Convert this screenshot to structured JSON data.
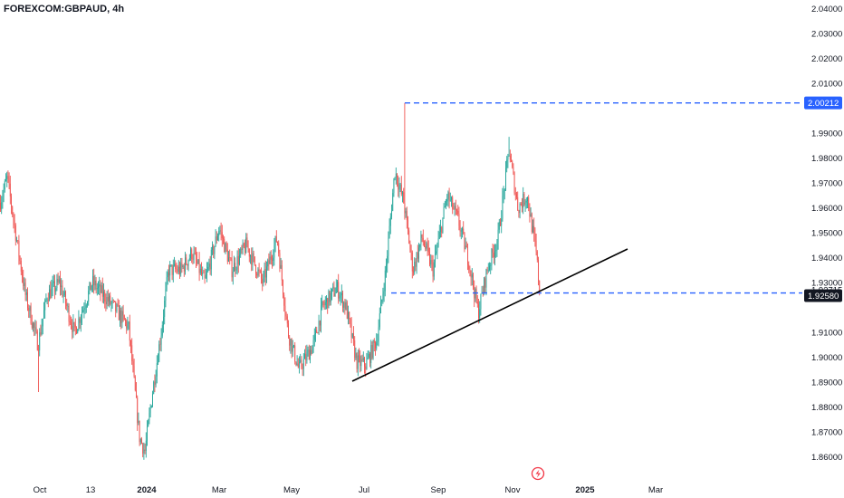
{
  "header": {
    "symbol": "FOREXCOM:GBPAUD",
    "interval": "4h"
  },
  "chart_data": {
    "type": "candlestick",
    "title": "FOREXCOM:GBPAUD, 4h",
    "ylim": [
      1.855,
      2.042
    ],
    "y_ticks": [
      "2.04000",
      "2.03000",
      "2.02000",
      "2.01000",
      "1.99000",
      "1.98000",
      "1.97000",
      "1.96000",
      "1.95000",
      "1.94000",
      "1.93000",
      "1.91000",
      "1.90000",
      "1.89000",
      "1.88000",
      "1.87000",
      "1.86000"
    ],
    "x_ticks": [
      {
        "label": "Oct",
        "bold": false
      },
      {
        "label": "13",
        "bold": false
      },
      {
        "label": "2024",
        "bold": true
      },
      {
        "label": "Mar",
        "bold": false
      },
      {
        "label": "May",
        "bold": false
      },
      {
        "label": "Jul",
        "bold": false
      },
      {
        "label": "Sep",
        "bold": false
      },
      {
        "label": "Nov",
        "bold": false
      },
      {
        "label": "2025",
        "bold": true
      },
      {
        "label": "Mar",
        "bold": false
      }
    ],
    "price_path": [
      [
        0,
        1.962
      ],
      [
        8,
        1.972
      ],
      [
        18,
        1.948
      ],
      [
        28,
        1.925
      ],
      [
        42,
        1.905
      ],
      [
        52,
        1.925
      ],
      [
        66,
        1.93
      ],
      [
        82,
        1.91
      ],
      [
        102,
        1.93
      ],
      [
        126,
        1.92
      ],
      [
        142,
        1.912
      ],
      [
        154,
        1.868
      ],
      [
        160,
        1.862
      ],
      [
        168,
        1.885
      ],
      [
        178,
        1.91
      ],
      [
        186,
        1.935
      ],
      [
        200,
        1.935
      ],
      [
        212,
        1.942
      ],
      [
        226,
        1.93
      ],
      [
        242,
        1.952
      ],
      [
        256,
        1.935
      ],
      [
        272,
        1.945
      ],
      [
        290,
        1.93
      ],
      [
        306,
        1.948
      ],
      [
        318,
        1.91
      ],
      [
        330,
        1.895
      ],
      [
        346,
        1.905
      ],
      [
        356,
        1.92
      ],
      [
        372,
        1.928
      ],
      [
        382,
        1.92
      ],
      [
        394,
        1.898
      ],
      [
        404,
        1.897
      ],
      [
        416,
        1.907
      ],
      [
        426,
        1.935
      ],
      [
        436,
        1.975
      ],
      [
        446,
        1.962
      ],
      [
        456,
        1.935
      ],
      [
        466,
        1.948
      ],
      [
        478,
        1.935
      ],
      [
        494,
        1.965
      ],
      [
        506,
        1.955
      ],
      [
        518,
        1.938
      ],
      [
        528,
        1.918
      ],
      [
        538,
        1.935
      ],
      [
        550,
        1.948
      ],
      [
        562,
        1.983
      ],
      [
        572,
        1.96
      ],
      [
        582,
        1.965
      ],
      [
        592,
        1.942
      ],
      [
        596,
        1.926
      ]
    ],
    "annotations": {
      "upper_dashed_level": 2.00212,
      "upper_badge": "2.00212",
      "lower_dashed_level": 1.9258,
      "lower_badge": "1.92580",
      "extra_label": "1.92715",
      "trendline": [
        [
          1.8895
        ],
        [
          1.9425
        ]
      ]
    },
    "colors": {
      "up": "#26a69a",
      "down": "#ef5350",
      "dashed_line": "#2962ff",
      "trendline": "#000000",
      "badge_blue": "#2962ff",
      "badge_dark": "#131722"
    }
  }
}
